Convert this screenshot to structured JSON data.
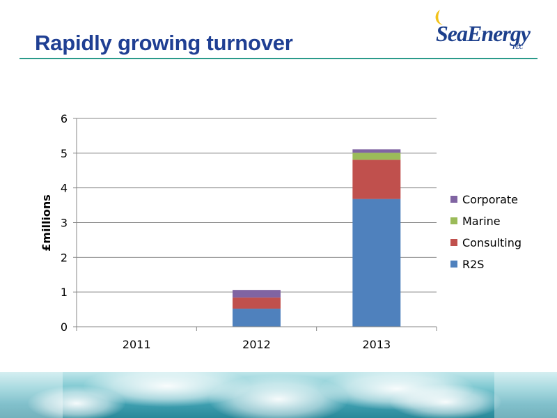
{
  "slide": {
    "title": "Rapidly growing turnover",
    "logo_text": "SeaEnergy",
    "logo_subtext": "PLC"
  },
  "colors": {
    "title": "#1f3f93",
    "rule": "#2a9a8a",
    "r2s": "#4f81bd",
    "consulting": "#c0504d",
    "marine": "#9bbb59",
    "corporate": "#8064a2"
  },
  "chart_data": {
    "type": "bar",
    "stacked": true,
    "categories": [
      "2011",
      "2012",
      "2013"
    ],
    "series": [
      {
        "name": "R2S",
        "color": "#4f81bd",
        "values": [
          0,
          0.52,
          3.68
        ]
      },
      {
        "name": "Consulting",
        "color": "#c0504d",
        "values": [
          0,
          0.32,
          1.13
        ]
      },
      {
        "name": "Marine",
        "color": "#9bbb59",
        "values": [
          0,
          0,
          0.2
        ]
      },
      {
        "name": "Corporate",
        "color": "#8064a2",
        "values": [
          0,
          0.22,
          0.1
        ]
      }
    ],
    "title": "",
    "xlabel": "",
    "ylabel": "£millions",
    "ylim": [
      0,
      6
    ],
    "yticks": [
      "0",
      "1",
      "2",
      "3",
      "4",
      "5",
      "6"
    ],
    "grid": true,
    "legend": "right"
  }
}
